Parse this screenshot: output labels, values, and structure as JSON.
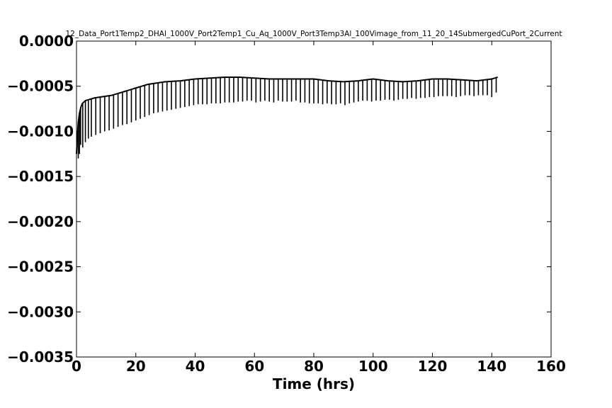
{
  "chart_data": {
    "type": "line",
    "title": "12_Data_Port1Temp2_DHAl_1000V_Port2Temp1_Cu_Aq_1000V_Port3Temp3Al_100Vimage_from_11_20_14SubmergedCuPort_2Current",
    "xlabel": "Time (hrs)",
    "ylabel": "",
    "xlim": [
      0,
      160
    ],
    "ylim": [
      -0.0035,
      0.0
    ],
    "x_ticks": [
      0,
      20,
      40,
      60,
      80,
      100,
      120,
      140,
      160
    ],
    "x_tick_labels": [
      "0",
      "20",
      "40",
      "60",
      "80",
      "100",
      "120",
      "140",
      "160"
    ],
    "y_ticks": [
      0.0,
      -0.0005,
      -0.001,
      -0.0015,
      -0.002,
      -0.0025,
      -0.003,
      -0.0035
    ],
    "y_tick_labels": [
      "0.0000",
      "−0.0005",
      "−0.0010",
      "−0.0015",
      "−0.0020",
      "−0.0025",
      "−0.0030",
      "−0.0035"
    ],
    "grid": false,
    "legend": "none",
    "colors": {
      "line": "#000000",
      "background": "#ffffff"
    },
    "series": [
      {
        "x": [
          0.0,
          0.3,
          0.6,
          1.0,
          1.5,
          2.0,
          3.0,
          4.0,
          5.0,
          6.0,
          8.0,
          10.0,
          12.0,
          14.0,
          16.0,
          18.0,
          20.0,
          22.0,
          24.0,
          26.0,
          28.0,
          30.0,
          35.0,
          40.0,
          45.0,
          50.0,
          55.0,
          60.0,
          65.0,
          70.0,
          75.0,
          80.0,
          85.0,
          90.0,
          95.0,
          100.0,
          105.0,
          110.0,
          115.0,
          120.0,
          125.0,
          130.0,
          135.0,
          140.0,
          142.0
        ],
        "y": [
          -0.00125,
          -0.00105,
          -0.0009,
          -0.0008,
          -0.00073,
          -0.00069,
          -0.00066,
          -0.00065,
          -0.00064,
          -0.00063,
          -0.00062,
          -0.00061,
          -0.0006,
          -0.00058,
          -0.00056,
          -0.00054,
          -0.00052,
          -0.0005,
          -0.00048,
          -0.00047,
          -0.00046,
          -0.00045,
          -0.00044,
          -0.00042,
          -0.00041,
          -0.0004,
          -0.0004,
          -0.00041,
          -0.00042,
          -0.00042,
          -0.00042,
          -0.00042,
          -0.00044,
          -0.00045,
          -0.00044,
          -0.00042,
          -0.00044,
          -0.00045,
          -0.00044,
          -0.00042,
          -0.00042,
          -0.00043,
          -0.00044,
          -0.00042,
          -0.0004
        ]
      }
    ],
    "dips": {
      "x": [
        0.6,
        1.0,
        1.4,
        2.1,
        3.0,
        4.0,
        5.0,
        6.5,
        8.0,
        9.5,
        11.0,
        12.5,
        14.0,
        15.5,
        17.0,
        18.5,
        20.0,
        21.5,
        23.0,
        24.5,
        26.0,
        27.5,
        29.0,
        30.5,
        32.0,
        33.5,
        35.0,
        36.5,
        38.0,
        39.5,
        41.0,
        42.5,
        44.0,
        45.5,
        47.0,
        48.5,
        50.0,
        51.5,
        53.0,
        54.5,
        56.0,
        57.5,
        59.0,
        60.5,
        62.0,
        63.5,
        65.0,
        66.5,
        68.0,
        69.5,
        71.0,
        72.5,
        74.0,
        75.5,
        77.0,
        78.5,
        80.0,
        81.5,
        83.0,
        84.5,
        86.0,
        87.5,
        89.0,
        90.5,
        92.0,
        93.5,
        95.0,
        96.5,
        98.0,
        99.5,
        101.0,
        102.5,
        104.0,
        105.5,
        107.0,
        108.5,
        110.0,
        111.5,
        113.0,
        114.5,
        116.0,
        117.5,
        119.0,
        120.5,
        122.0,
        123.5,
        125.0,
        126.5,
        128.0,
        129.5,
        131.0,
        132.5,
        134.0,
        135.5,
        137.0,
        138.5,
        140.0,
        141.5
      ],
      "y": [
        -0.0013,
        -0.00125,
        -0.00115,
        -0.00118,
        -0.00112,
        -0.00108,
        -0.00106,
        -0.00104,
        -0.00102,
        -0.001,
        -0.00099,
        -0.00097,
        -0.00095,
        -0.00093,
        -0.00092,
        -0.0009,
        -0.00088,
        -0.00086,
        -0.00084,
        -0.00082,
        -0.0008,
        -0.00079,
        -0.00078,
        -0.00077,
        -0.00076,
        -0.00075,
        -0.00074,
        -0.00073,
        -0.00072,
        -0.00071,
        -0.0007,
        -0.0007,
        -0.0007,
        -0.00069,
        -0.00069,
        -0.00069,
        -0.00068,
        -0.00068,
        -0.00068,
        -0.00067,
        -0.00067,
        -0.00066,
        -0.00066,
        -0.00068,
        -0.00067,
        -0.00066,
        -0.00067,
        -0.00068,
        -0.00066,
        -0.00067,
        -0.00067,
        -0.00067,
        -0.00066,
        -0.00068,
        -0.00068,
        -0.00069,
        -0.00069,
        -0.00069,
        -0.0007,
        -0.00069,
        -0.0007,
        -0.0007,
        -0.00069,
        -0.00071,
        -0.00069,
        -0.00068,
        -0.00067,
        -0.00066,
        -0.00066,
        -0.00067,
        -0.00066,
        -0.00066,
        -0.00065,
        -0.00065,
        -0.00066,
        -0.00065,
        -0.00064,
        -0.00064,
        -0.00063,
        -0.00064,
        -0.00063,
        -0.00063,
        -0.00062,
        -0.00062,
        -0.00061,
        -0.00061,
        -0.00061,
        -0.00061,
        -0.00062,
        -0.00061,
        -0.0006,
        -0.0006,
        -0.00061,
        -0.0006,
        -0.0006,
        -0.0006,
        -0.00062,
        -0.00057
      ]
    }
  }
}
